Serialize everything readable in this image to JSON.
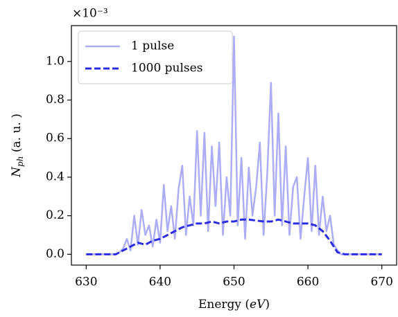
{
  "chart_data": {
    "type": "line",
    "xlabel": {
      "text": "Energy (",
      "italic": "eV",
      "close": ")"
    },
    "ylabel": {
      "main": "N",
      "sub": "ph",
      "rest": " (a. u. )"
    },
    "offset_text": "×10⁻³",
    "xlim": [
      628,
      672
    ],
    "ylim": [
      -0.056,
      1.186
    ],
    "xticks": [
      630,
      640,
      650,
      660,
      670
    ],
    "yticks": [
      {
        "value": 0,
        "label": "0.0"
      },
      0.2,
      0.4,
      0.6,
      0.8,
      {
        "value": 1,
        "label": "1.0"
      }
    ],
    "legend": "upper left",
    "series": [
      {
        "name": "1 pulse",
        "color": "#adadf7",
        "style": "solid",
        "x": [
          630,
          630.5,
          631,
          631.5,
          632,
          632.5,
          633,
          633.5,
          634,
          634.5,
          635,
          635.5,
          636,
          636.5,
          637,
          637.5,
          638,
          638.5,
          639,
          639.5,
          640,
          640.5,
          641,
          641.5,
          642,
          642.5,
          643,
          643.5,
          644,
          644.5,
          645,
          645.5,
          646,
          646.5,
          647,
          647.5,
          648,
          648.5,
          649,
          649.5,
          650,
          650.5,
          651,
          651.5,
          652,
          652.5,
          653,
          653.5,
          654,
          654.5,
          655,
          655.5,
          656,
          656.5,
          657,
          657.5,
          658,
          658.5,
          659,
          659.5,
          660,
          660.5,
          661,
          661.5,
          662,
          662.5,
          663,
          663.5,
          664,
          664.5,
          665,
          665.5,
          666,
          666.5,
          667,
          667.5,
          668,
          668.5,
          669,
          669.5,
          670
        ],
        "values": [
          0,
          0,
          0,
          0,
          0,
          0,
          0,
          0,
          0,
          0.01,
          0.03,
          0.08,
          0.02,
          0.2,
          0.05,
          0.23,
          0.1,
          0.15,
          0.04,
          0.18,
          0.06,
          0.36,
          0.12,
          0.25,
          0.08,
          0.34,
          0.46,
          0.1,
          0.3,
          0.15,
          0.64,
          0.2,
          0.63,
          0.12,
          0.56,
          0.25,
          0.58,
          0.1,
          0.4,
          0.2,
          1.13,
          0.15,
          0.5,
          0.08,
          0.45,
          0.2,
          0.35,
          0.58,
          0.1,
          0.42,
          0.89,
          0.2,
          0.73,
          0.15,
          0.56,
          0.1,
          0.35,
          0.4,
          0.08,
          0.3,
          0.5,
          0.12,
          0.46,
          0.1,
          0.3,
          0.12,
          0.2,
          0.05,
          0.02,
          0,
          0,
          0,
          0,
          0,
          0,
          0,
          0,
          0,
          0,
          0,
          0
        ]
      },
      {
        "name": "1000 pulses",
        "color": "#2b2be3",
        "style": "dashed",
        "x": [
          630,
          631,
          632,
          633,
          634,
          635,
          636,
          637,
          638,
          639,
          640,
          641,
          642,
          643,
          644,
          645,
          646,
          647,
          648,
          649,
          650,
          651,
          652,
          653,
          654,
          655,
          656,
          657,
          658,
          659,
          660,
          661,
          662,
          663,
          664,
          665,
          666,
          667,
          668,
          669,
          670
        ],
        "values": [
          0,
          0,
          0,
          0,
          0,
          0.02,
          0.04,
          0.06,
          0.05,
          0.07,
          0.08,
          0.1,
          0.12,
          0.14,
          0.15,
          0.16,
          0.16,
          0.17,
          0.16,
          0.17,
          0.17,
          0.18,
          0.18,
          0.175,
          0.17,
          0.17,
          0.18,
          0.17,
          0.16,
          0.16,
          0.16,
          0.15,
          0.12,
          0.07,
          0.01,
          0,
          0,
          0,
          0,
          0,
          0
        ]
      }
    ]
  }
}
